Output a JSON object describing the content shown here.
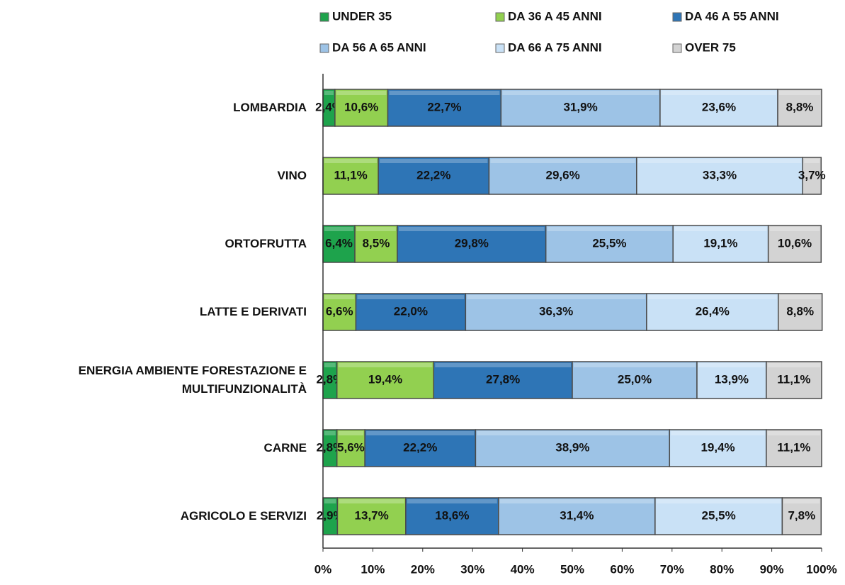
{
  "chart_data": {
    "type": "stacked_barh",
    "categories": [
      "LOMBARDIA",
      "VINO",
      "ORTOFRUTTA",
      "LATTE E DERIVATI",
      "ENERGIA AMBIENTE FORESTAZIONE E MULTIFUNZIONALITÀ",
      "CARNE",
      "AGRICOLO E SERVIZI"
    ],
    "series": [
      {
        "name": "UNDER 35",
        "color": "#1ea34c",
        "values": [
          2.4,
          null,
          6.4,
          null,
          2.8,
          2.8,
          2.9
        ],
        "value_labels": [
          "2,4%",
          null,
          "6,4%",
          null,
          "2,8%",
          "2,8%",
          "2,9%"
        ]
      },
      {
        "name": "DA 36 A 45 ANNI",
        "color": "#92d050",
        "values": [
          10.6,
          11.1,
          8.5,
          6.6,
          19.4,
          5.6,
          13.7
        ],
        "value_labels": [
          "10,6%",
          "11,1%",
          "8,5%",
          "6,6%",
          "19,4%",
          "5,6%",
          "13,7%"
        ]
      },
      {
        "name": "DA 46 A 55 ANNI",
        "color": "#2e75b6",
        "values": [
          22.7,
          22.2,
          29.8,
          22.0,
          27.8,
          22.2,
          18.6
        ],
        "value_labels": [
          "22,7%",
          "22,2%",
          "29,8%",
          "22,0%",
          "27,8%",
          "22,2%",
          "18,6%"
        ]
      },
      {
        "name": "DA 56 A 65 ANNI",
        "color": "#9dc3e6",
        "values": [
          31.9,
          29.6,
          25.5,
          36.3,
          25.0,
          38.9,
          31.4
        ],
        "value_labels": [
          "31,9%",
          "29,6%",
          "25,5%",
          "36,3%",
          "25,0%",
          "38,9%",
          "31,4%"
        ]
      },
      {
        "name": "DA 66 A 75 ANNI",
        "color": "#c9e1f6",
        "values": [
          23.6,
          33.3,
          19.1,
          26.4,
          13.9,
          19.4,
          25.5
        ],
        "value_labels": [
          "23,6%",
          "33,3%",
          "19,1%",
          "26,4%",
          "13,9%",
          "19,4%",
          "25,5%"
        ]
      },
      {
        "name": "OVER 75",
        "color": "#d3d3d3",
        "values": [
          8.8,
          3.7,
          10.6,
          8.8,
          11.1,
          11.1,
          7.8
        ],
        "value_labels": [
          "8,8%",
          "3,7%",
          "10,6%",
          "8,8%",
          "11,1%",
          "11,1%",
          "7,8%"
        ]
      }
    ],
    "xlim": [
      0,
      100
    ],
    "xticks": [
      {
        "value": 0,
        "label": "0%"
      },
      {
        "value": 10,
        "label": "10%"
      },
      {
        "value": 20,
        "label": "20%"
      },
      {
        "value": 30,
        "label": "30%"
      },
      {
        "value": 40,
        "label": "40%"
      },
      {
        "value": 50,
        "label": "50%"
      },
      {
        "value": 60,
        "label": "60%"
      },
      {
        "value": 70,
        "label": "70%"
      },
      {
        "value": 80,
        "label": "80%"
      },
      {
        "value": 90,
        "label": "90%"
      },
      {
        "value": 100,
        "label": "100%"
      }
    ],
    "legend": "top"
  }
}
